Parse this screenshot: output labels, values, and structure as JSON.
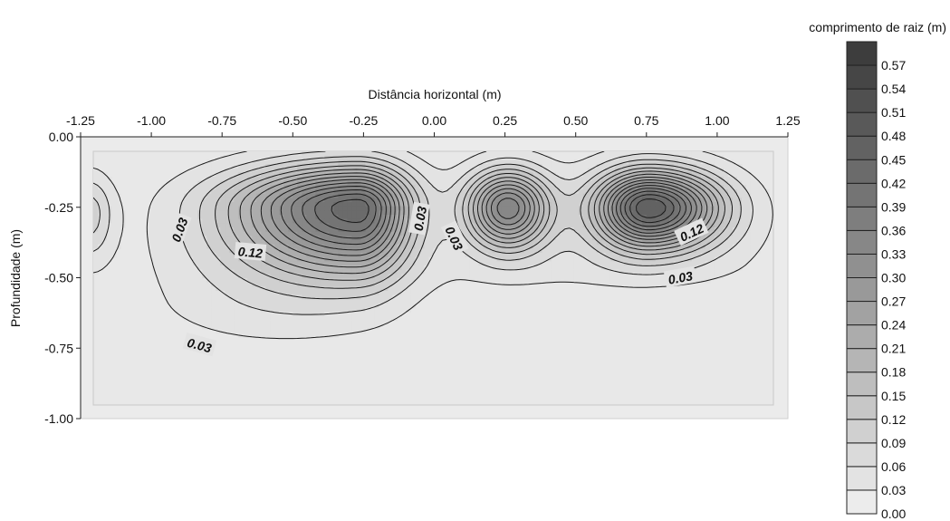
{
  "chart_data": {
    "type": "contour",
    "xlabel": "Distância horizontal (m)",
    "ylabel": "Profundidade (m)",
    "colorbar_label": "comprimento de raiz (m)",
    "x_ticks": [
      "-1.25",
      "-1.00",
      "-0.75",
      "-0.50",
      "-0.25",
      "0.00",
      "0.25",
      "0.50",
      "0.75",
      "1.00",
      "1.25"
    ],
    "y_ticks": [
      "0.00",
      "-0.25",
      "-0.50",
      "-0.75",
      "-1.00"
    ],
    "xlim": [
      -1.25,
      1.25
    ],
    "ylim": [
      -1.0,
      0.0
    ],
    "x_axis_position": "top",
    "colorbar_levels": [
      "0.00",
      "0.03",
      "0.06",
      "0.09",
      "0.12",
      "0.15",
      "0.18",
      "0.21",
      "0.24",
      "0.27",
      "0.30",
      "0.33",
      "0.36",
      "0.39",
      "0.42",
      "0.45",
      "0.48",
      "0.51",
      "0.54",
      "0.57"
    ],
    "contour_interval": 0.03,
    "peaks": [
      {
        "x": -0.27,
        "y": -0.25,
        "value": 0.42
      },
      {
        "x": 0.26,
        "y": -0.25,
        "value": 0.33
      },
      {
        "x": 0.76,
        "y": -0.25,
        "value": 0.45
      }
    ],
    "contour_labels": [
      {
        "text": "0.03",
        "x": -0.9,
        "y": -0.33,
        "angle": -70
      },
      {
        "text": "0.12",
        "x": -0.65,
        "y": -0.41,
        "angle": 5
      },
      {
        "text": "0.03",
        "x": -0.05,
        "y": -0.29,
        "angle": -80
      },
      {
        "text": "0.03",
        "x": 0.07,
        "y": -0.36,
        "angle": 65
      },
      {
        "text": "0.12",
        "x": 0.91,
        "y": -0.34,
        "angle": -25
      },
      {
        "text": "0.03",
        "x": 0.87,
        "y": -0.5,
        "angle": -10
      },
      {
        "text": "0.03",
        "x": -0.83,
        "y": -0.74,
        "angle": 15
      }
    ],
    "colormap": "grayscale, light at low values, dark at high values",
    "grid": false
  }
}
